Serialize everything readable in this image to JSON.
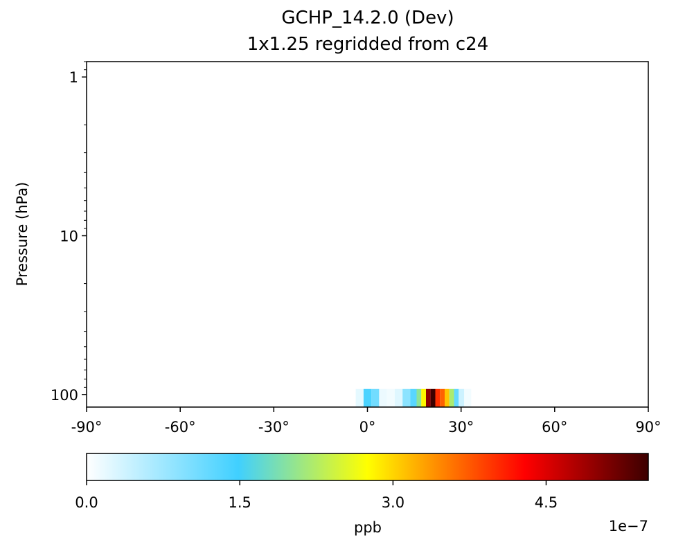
{
  "chart_data": {
    "type": "heatmap",
    "title_line1": "GCHP_14.2.0 (Dev)",
    "title_line2": "1x1.25 regridded from c24",
    "ylabel": "Pressure (hPa)",
    "xlim": [
      -90,
      90
    ],
    "ylim_hpa": [
      0.8,
      120
    ],
    "y_scale": "log",
    "y_inverted": true,
    "x_ticks": [
      "-90°",
      "-60°",
      "-30°",
      "0°",
      "30°",
      "60°",
      "90°"
    ],
    "x_tick_values": [
      -90,
      -60,
      -30,
      0,
      30,
      60,
      90
    ],
    "y_ticks": [
      "1",
      "10",
      "100"
    ],
    "y_tick_values": [
      1,
      10,
      100
    ],
    "data_layer": {
      "pressure_top_hpa": 100,
      "cells": [
        {
          "lat": -2.5,
          "value": 0.2
        },
        {
          "lat": 0.0,
          "value": 1.4
        },
        {
          "lat": 2.5,
          "value": 1.1
        },
        {
          "lat": 5.0,
          "value": 0.15
        },
        {
          "lat": 7.5,
          "value": 0.1
        },
        {
          "lat": 10.0,
          "value": 0.25
        },
        {
          "lat": 12.5,
          "value": 0.9
        },
        {
          "lat": 15.0,
          "value": 1.3
        },
        {
          "lat": 16.5,
          "value": 2.0
        },
        {
          "lat": 18.0,
          "value": 2.8
        },
        {
          "lat": 19.5,
          "value": 5.0
        },
        {
          "lat": 21.0,
          "value": 5.5
        },
        {
          "lat": 22.5,
          "value": 4.0
        },
        {
          "lat": 24.0,
          "value": 3.7
        },
        {
          "lat": 25.5,
          "value": 3.1
        },
        {
          "lat": 27.0,
          "value": 2.2
        },
        {
          "lat": 28.5,
          "value": 1.2
        },
        {
          "lat": 30.0,
          "value": 0.4
        },
        {
          "lat": 32.0,
          "value": 0.1
        }
      ]
    },
    "colorbar": {
      "label": "ppb",
      "min": 0.0,
      "max": 5.5,
      "ticks": [
        "0.0",
        "1.5",
        "3.0",
        "4.5"
      ],
      "tick_values": [
        0.0,
        1.5,
        3.0,
        4.5
      ],
      "scale_label": "1e−7",
      "colors": [
        "#ffffff",
        "#40d0ff",
        "#ffff00",
        "#ff8000",
        "#ff0000",
        "#3c0000"
      ]
    }
  }
}
